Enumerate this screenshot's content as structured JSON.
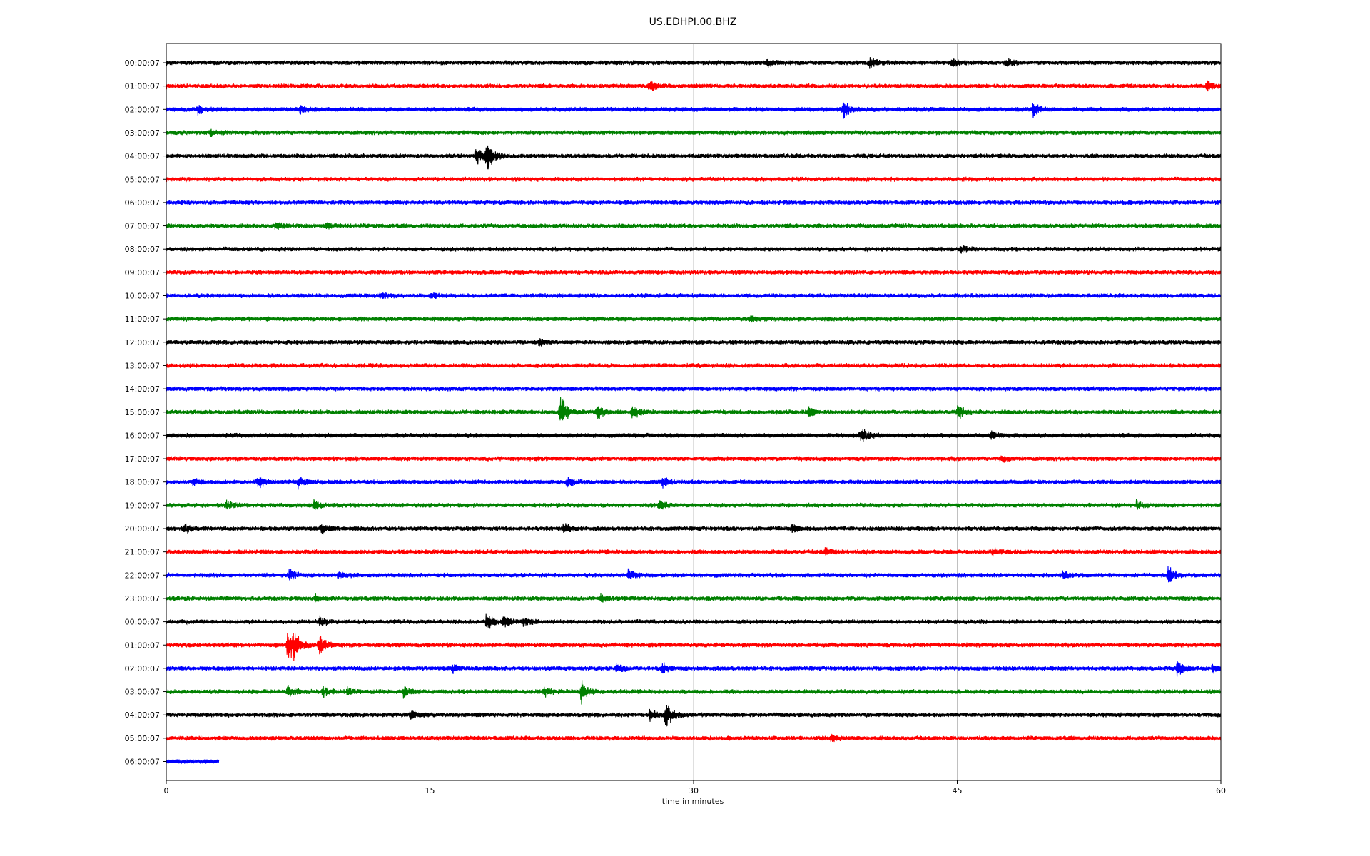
{
  "chart_data": {
    "type": "line",
    "title": "US.EDHPI.00.BHZ",
    "xlabel": "time in minutes",
    "ylabel": "",
    "xlim": [
      0,
      60
    ],
    "x_ticks": [
      0,
      15,
      30,
      45,
      60
    ],
    "vertical_gridlines_at": [
      15,
      30,
      45
    ],
    "grid": "vertical-only",
    "legend": "none",
    "color_cycle": [
      "#000000",
      "#ff0000",
      "#0000ff",
      "#008000"
    ],
    "series": [
      {
        "label": "00:00:07",
        "color": "#000000",
        "x_end": 60,
        "events": [
          {
            "t": 34.2,
            "amp": 0.5
          },
          {
            "t": 40.0,
            "amp": 0.6
          },
          {
            "t": 44.7,
            "amp": 0.5
          },
          {
            "t": 47.8,
            "amp": 0.4
          }
        ]
      },
      {
        "label": "01:00:07",
        "color": "#ff0000",
        "x_end": 60,
        "events": [
          {
            "t": 27.5,
            "amp": 0.5
          },
          {
            "t": 59.2,
            "amp": 0.5
          }
        ]
      },
      {
        "label": "02:00:07",
        "color": "#0000ff",
        "x_end": 60,
        "events": [
          {
            "t": 1.8,
            "amp": 0.4
          },
          {
            "t": 7.6,
            "amp": 0.4
          },
          {
            "t": 38.5,
            "amp": 1.0
          },
          {
            "t": 49.3,
            "amp": 0.7
          }
        ]
      },
      {
        "label": "03:00:07",
        "color": "#008000",
        "x_end": 60,
        "events": [
          {
            "t": 2.5,
            "amp": 0.3
          }
        ]
      },
      {
        "label": "04:00:07",
        "color": "#000000",
        "x_end": 60,
        "events": [
          {
            "t": 17.6,
            "amp": 0.9
          },
          {
            "t": 18.2,
            "amp": 1.8
          }
        ]
      },
      {
        "label": "05:00:07",
        "color": "#ff0000",
        "x_end": 60,
        "events": []
      },
      {
        "label": "06:00:07",
        "color": "#0000ff",
        "x_end": 60,
        "events": []
      },
      {
        "label": "07:00:07",
        "color": "#008000",
        "x_end": 60,
        "events": [
          {
            "t": 6.2,
            "amp": 0.4
          },
          {
            "t": 9.1,
            "amp": 0.3
          }
        ]
      },
      {
        "label": "08:00:07",
        "color": "#000000",
        "x_end": 60,
        "events": [
          {
            "t": 45.2,
            "amp": 0.3
          }
        ]
      },
      {
        "label": "09:00:07",
        "color": "#ff0000",
        "x_end": 60,
        "events": []
      },
      {
        "label": "10:00:07",
        "color": "#0000ff",
        "x_end": 60,
        "events": [
          {
            "t": 12.2,
            "amp": 0.3
          },
          {
            "t": 15.1,
            "amp": 0.3
          }
        ]
      },
      {
        "label": "11:00:07",
        "color": "#008000",
        "x_end": 60,
        "events": [
          {
            "t": 33.2,
            "amp": 0.3
          }
        ]
      },
      {
        "label": "12:00:07",
        "color": "#000000",
        "x_end": 60,
        "events": [
          {
            "t": 21.2,
            "amp": 0.3
          }
        ]
      },
      {
        "label": "13:00:07",
        "color": "#ff0000",
        "x_end": 60,
        "events": []
      },
      {
        "label": "14:00:07",
        "color": "#0000ff",
        "x_end": 60,
        "events": []
      },
      {
        "label": "15:00:07",
        "color": "#008000",
        "x_end": 60,
        "events": [
          {
            "t": 22.4,
            "amp": 2.0
          },
          {
            "t": 24.5,
            "amp": 0.8
          },
          {
            "t": 26.5,
            "amp": 0.7
          },
          {
            "t": 36.5,
            "amp": 0.5
          },
          {
            "t": 45.0,
            "amp": 0.7
          }
        ]
      },
      {
        "label": "16:00:07",
        "color": "#000000",
        "x_end": 60,
        "events": [
          {
            "t": 39.5,
            "amp": 0.9
          },
          {
            "t": 46.9,
            "amp": 0.4
          }
        ]
      },
      {
        "label": "17:00:07",
        "color": "#ff0000",
        "x_end": 60,
        "events": [
          {
            "t": 47.5,
            "amp": 0.3
          }
        ]
      },
      {
        "label": "18:00:07",
        "color": "#0000ff",
        "x_end": 60,
        "events": [
          {
            "t": 1.5,
            "amp": 0.4
          },
          {
            "t": 5.2,
            "amp": 0.6
          },
          {
            "t": 7.5,
            "amp": 0.5
          },
          {
            "t": 22.8,
            "amp": 0.5
          },
          {
            "t": 28.2,
            "amp": 0.5
          }
        ]
      },
      {
        "label": "19:00:07",
        "color": "#008000",
        "x_end": 60,
        "events": [
          {
            "t": 3.4,
            "amp": 0.4
          },
          {
            "t": 8.4,
            "amp": 0.5
          },
          {
            "t": 28.0,
            "amp": 0.6
          },
          {
            "t": 55.2,
            "amp": 0.4
          }
        ]
      },
      {
        "label": "20:00:07",
        "color": "#000000",
        "x_end": 60,
        "events": [
          {
            "t": 1.0,
            "amp": 0.6
          },
          {
            "t": 8.8,
            "amp": 0.5
          },
          {
            "t": 22.6,
            "amp": 0.6
          },
          {
            "t": 35.6,
            "amp": 0.4
          }
        ]
      },
      {
        "label": "21:00:07",
        "color": "#ff0000",
        "x_end": 60,
        "events": [
          {
            "t": 37.5,
            "amp": 0.4
          },
          {
            "t": 47.0,
            "amp": 0.3
          }
        ]
      },
      {
        "label": "22:00:07",
        "color": "#0000ff",
        "x_end": 60,
        "events": [
          {
            "t": 7.0,
            "amp": 0.5
          },
          {
            "t": 9.8,
            "amp": 0.4
          },
          {
            "t": 26.3,
            "amp": 0.6
          },
          {
            "t": 51.0,
            "amp": 0.4
          },
          {
            "t": 57.0,
            "amp": 1.0
          }
        ]
      },
      {
        "label": "23:00:07",
        "color": "#008000",
        "x_end": 60,
        "events": [
          {
            "t": 8.5,
            "amp": 0.3
          },
          {
            "t": 24.7,
            "amp": 0.3
          }
        ]
      },
      {
        "label": "00:00:07",
        "color": "#000000",
        "x_end": 60,
        "events": [
          {
            "t": 8.7,
            "amp": 0.5
          },
          {
            "t": 18.2,
            "amp": 0.8
          },
          {
            "t": 19.2,
            "amp": 0.6
          },
          {
            "t": 20.3,
            "amp": 0.4
          }
        ]
      },
      {
        "label": "01:00:07",
        "color": "#ff0000",
        "x_end": 60,
        "events": [
          {
            "t": 6.9,
            "amp": 1.6
          },
          {
            "t": 7.2,
            "amp": 1.3
          },
          {
            "t": 8.7,
            "amp": 1.2
          }
        ]
      },
      {
        "label": "02:00:07",
        "color": "#0000ff",
        "x_end": 60,
        "events": [
          {
            "t": 16.3,
            "amp": 0.4
          },
          {
            "t": 25.6,
            "amp": 0.5
          },
          {
            "t": 28.2,
            "amp": 0.5
          },
          {
            "t": 57.5,
            "amp": 0.9
          },
          {
            "t": 59.5,
            "amp": 0.4
          }
        ]
      },
      {
        "label": "03:00:07",
        "color": "#008000",
        "x_end": 60,
        "events": [
          {
            "t": 6.9,
            "amp": 0.6
          },
          {
            "t": 8.9,
            "amp": 0.5
          },
          {
            "t": 10.3,
            "amp": 0.4
          },
          {
            "t": 13.5,
            "amp": 0.6
          },
          {
            "t": 21.5,
            "amp": 0.4
          },
          {
            "t": 23.6,
            "amp": 1.2
          }
        ]
      },
      {
        "label": "04:00:07",
        "color": "#000000",
        "x_end": 60,
        "events": [
          {
            "t": 13.9,
            "amp": 0.5
          },
          {
            "t": 27.5,
            "amp": 0.6
          },
          {
            "t": 28.4,
            "amp": 1.5
          }
        ]
      },
      {
        "label": "05:00:07",
        "color": "#ff0000",
        "x_end": 60,
        "events": [
          {
            "t": 37.8,
            "amp": 0.4
          }
        ]
      },
      {
        "label": "06:00:07",
        "color": "#0000ff",
        "x_end": 3.0,
        "events": []
      }
    ]
  }
}
